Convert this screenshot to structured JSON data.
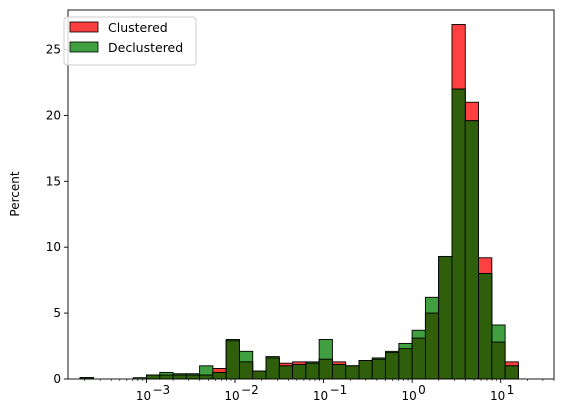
{
  "chart_data": {
    "type": "bar",
    "subtype": "histogram",
    "xscale": "log",
    "xlim": [
      0.00013,
      40
    ],
    "ylim": [
      0,
      28
    ],
    "xlabel": "",
    "ylabel": "Percent",
    "grid": false,
    "legend_position": "top-left",
    "x_tick_labels": [
      "10",
      "10",
      "10",
      "10",
      "10"
    ],
    "x_tick_exponents": [
      "−3",
      "−2",
      "−1",
      "0",
      "1"
    ],
    "x_tick_values": [
      0.001,
      0.01,
      0.1,
      1,
      10
    ],
    "y_tick_labels": [
      "0",
      "5",
      "10",
      "15",
      "20",
      "25"
    ],
    "y_tick_values": [
      0,
      5,
      10,
      15,
      20,
      25
    ],
    "bin_edges_log10": [
      -3.75,
      -3.6,
      -3.45,
      -3.3,
      -3.15,
      -3.0,
      -2.85,
      -2.7,
      -2.55,
      -2.4,
      -2.25,
      -2.1,
      -1.95,
      -1.8,
      -1.65,
      -1.5,
      -1.35,
      -1.2,
      -1.05,
      -0.9,
      -0.75,
      -0.6,
      -0.45,
      -0.3,
      -0.15,
      0.0,
      0.15,
      0.3,
      0.45,
      0.6,
      0.75,
      0.9,
      1.05,
      1.2,
      1.35,
      1.5
    ],
    "series": [
      {
        "name": "Clustered",
        "color": "#ff0000",
        "values": [
          0.1,
          0.0,
          0.0,
          0.0,
          0.0,
          0.3,
          0.3,
          0.3,
          0.3,
          0.3,
          0.8,
          2.9,
          1.3,
          0.6,
          1.6,
          1.2,
          1.3,
          1.2,
          1.5,
          1.3,
          1.0,
          1.4,
          1.5,
          2.0,
          2.3,
          3.1,
          5.0,
          9.3,
          26.9,
          21.0,
          9.2,
          2.8,
          1.3,
          0.0,
          0.0
        ]
      },
      {
        "name": "Declustered",
        "color": "#008000",
        "values": [
          0.1,
          0.0,
          0.0,
          0.0,
          0.1,
          0.3,
          0.5,
          0.4,
          0.4,
          1.0,
          0.5,
          3.0,
          2.1,
          0.6,
          1.7,
          1.0,
          1.1,
          1.3,
          3.0,
          1.1,
          1.0,
          1.4,
          1.6,
          2.1,
          2.7,
          3.7,
          6.2,
          9.3,
          22.0,
          19.6,
          8.0,
          4.1,
          1.0,
          0.0,
          0.0
        ]
      }
    ]
  }
}
